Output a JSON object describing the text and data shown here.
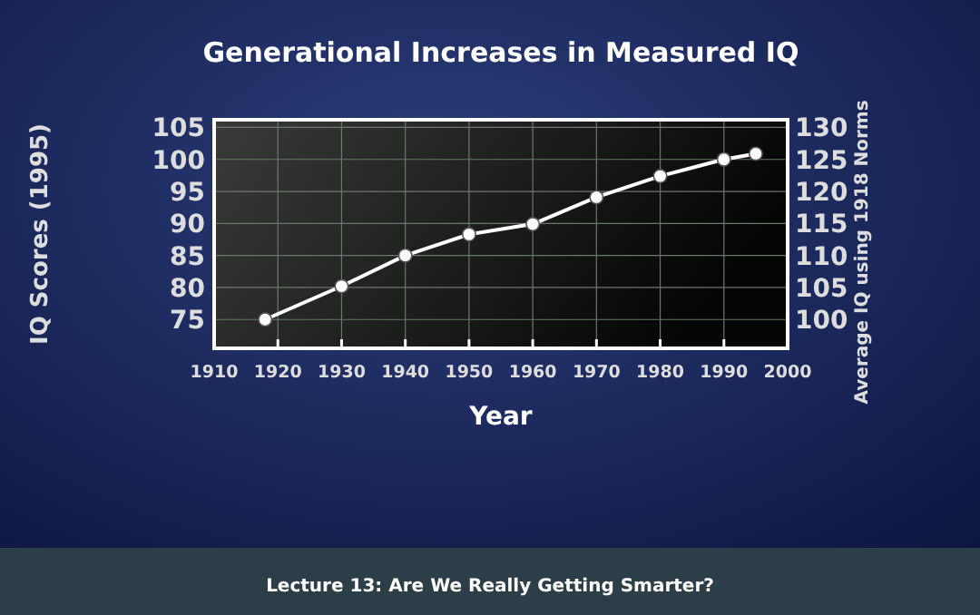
{
  "chart_data": {
    "type": "line",
    "title": "Generational Increases in Measured IQ",
    "xlabel": "Year",
    "ylabel": "IQ Scores (1995)",
    "y2label": "Average IQ using 1918 Norms",
    "x": [
      1918,
      1930,
      1940,
      1950,
      1960,
      1970,
      1980,
      1990,
      1995
    ],
    "series": [
      {
        "color": "#ffffff",
        "values": [
          75,
          80.2,
          85,
          88.3,
          89.9,
          94.1,
          97.4,
          100,
          100.9
        ]
      }
    ],
    "xlim": [
      1910,
      2000
    ],
    "xticks": [
      1910,
      1920,
      1930,
      1940,
      1950,
      1960,
      1970,
      1980,
      1990,
      2000
    ],
    "ylim": [
      70.5,
      106.2
    ],
    "yticks": [
      75,
      80,
      85,
      90,
      95,
      100,
      105
    ],
    "y2lim": [
      95.5,
      131.2
    ],
    "y2ticks": [
      100,
      105,
      110,
      115,
      120,
      125,
      130
    ],
    "grid": true,
    "marker": "circle",
    "line_style": "solid",
    "annotations": [
      "Lecture 13: Are We Really Getting Smarter?"
    ]
  }
}
